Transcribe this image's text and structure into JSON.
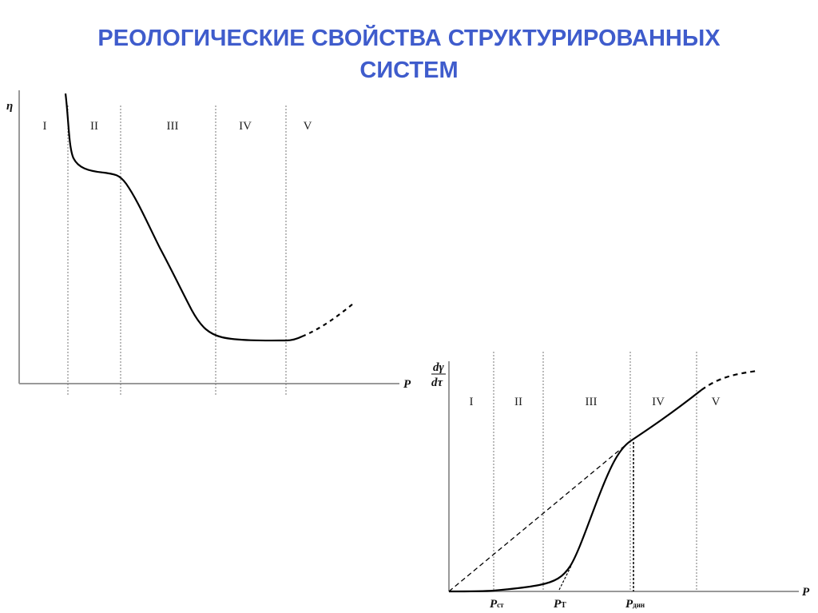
{
  "title": {
    "line1": "РЕОЛОГИЧЕСКИЕ СВОЙСТВА СТРУКТУРИРОВАННЫХ",
    "line2": "СИСТЕМ"
  },
  "diagram_viscosity": {
    "y_label": "η",
    "x_label": "P",
    "regions": [
      "I",
      "II",
      "III",
      "IV",
      "V"
    ]
  },
  "diagram_flow_rate": {
    "y_label_num": "dγ",
    "y_label_den": "dτ",
    "x_label": "P",
    "regions": [
      "I",
      "II",
      "III",
      "IV",
      "V"
    ],
    "x_marks": {
      "p_st": "P",
      "p_st_sub": "ст",
      "p_t": "P",
      "p_t_sub": "T",
      "p_din": "P",
      "p_din_sub": "дин"
    }
  },
  "colors": {
    "title": "#3f5ccc",
    "lines": "#000000"
  }
}
